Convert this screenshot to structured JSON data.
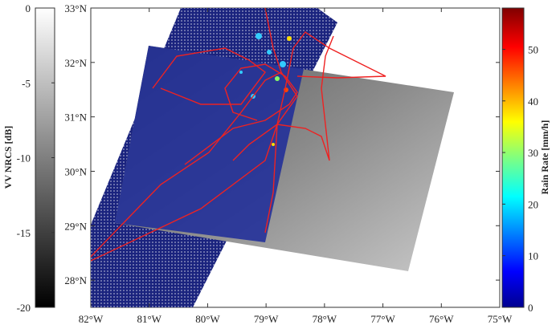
{
  "left_colorbar": {
    "label": "VV NRCS [dB]",
    "range": [
      -20,
      0
    ],
    "ticks": [
      0,
      -5,
      -10,
      -15,
      -20
    ]
  },
  "map": {
    "lat_range": [
      27.5,
      33
    ],
    "lon_range": [
      -82,
      -75
    ],
    "lat_ticks": [
      {
        "value": 33,
        "label": "33°N"
      },
      {
        "value": 32,
        "label": "32°N"
      },
      {
        "value": 31,
        "label": "31°N"
      },
      {
        "value": 30,
        "label": "30°N"
      },
      {
        "value": 29,
        "label": "29°N"
      },
      {
        "value": 28,
        "label": "28°N"
      }
    ],
    "lon_ticks": [
      {
        "value": -82,
        "label": "82°W"
      },
      {
        "value": -81,
        "label": "81°W"
      },
      {
        "value": -80,
        "label": "80°W"
      },
      {
        "value": -79,
        "label": "79°W"
      },
      {
        "value": -78,
        "label": "78°W"
      },
      {
        "value": -77,
        "label": "77°W"
      },
      {
        "value": -76,
        "label": "76°W"
      },
      {
        "value": -75,
        "label": "75°W"
      }
    ]
  },
  "right_colorbar": {
    "label": "Rain Rate [mm/h]",
    "range": [
      0,
      58
    ],
    "ticks": [
      0,
      10,
      20,
      30,
      40,
      50
    ]
  }
}
